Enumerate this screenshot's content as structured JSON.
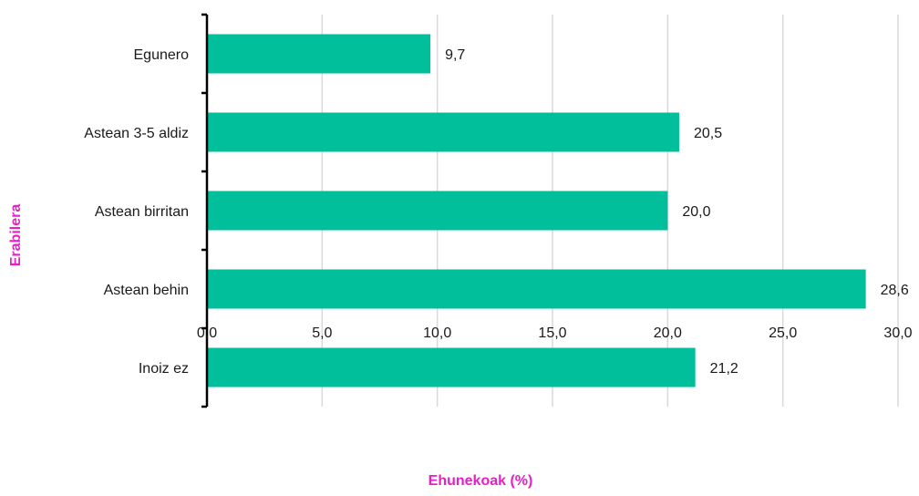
{
  "chart_data": {
    "type": "bar",
    "orientation": "horizontal",
    "categories": [
      "Egunero",
      "Astean 3-5 aldiz",
      "Astean birritan",
      "Astean behin",
      "Inoiz ez"
    ],
    "values": [
      9.7,
      20.5,
      20.0,
      28.6,
      21.2
    ],
    "value_labels": [
      "9,7",
      "20,5",
      "20,0",
      "28,6",
      "21,2"
    ],
    "xlabel": "Ehunekoak (%)",
    "ylabel": "Erabilera",
    "xlim": [
      0,
      30
    ],
    "x_ticks": [
      0,
      5,
      10,
      15,
      20,
      25,
      30
    ],
    "x_tick_labels": [
      "0,0",
      "5,0",
      "10,0",
      "15,0",
      "20,0",
      "25,0",
      "30,0"
    ],
    "grid": "vertical",
    "legend": "none",
    "bar_color": "#00bf9a",
    "axis_title_color": "#e91ec7",
    "grid_color": "#d9d9d9"
  }
}
